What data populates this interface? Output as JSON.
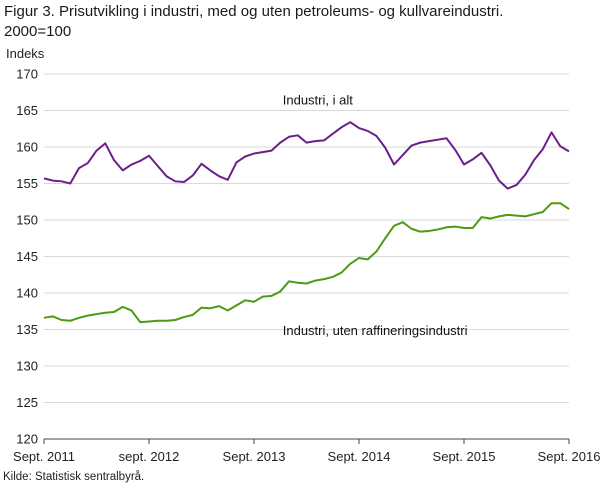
{
  "figure": {
    "title_line1": "Figur 3. Prisutvikling i industri, med og uten petroleums- og kullvareindustri.",
    "title_line2": "2000=100",
    "source": "Kilde: Statistisk sentralbyrå."
  },
  "colors": {
    "series_1": "#6a1f8a",
    "series_2": "#4e9a12",
    "grid": "#d9d9d9",
    "axis": "#444444"
  },
  "chart_data": {
    "type": "line",
    "ylabel": "Indeks",
    "xlabel": "",
    "ylim": [
      120,
      170
    ],
    "yticks": [
      120,
      125,
      130,
      135,
      140,
      145,
      150,
      155,
      160,
      165,
      170
    ],
    "xlim": [
      "2011-09",
      "2016-09"
    ],
    "xtick_positions": [
      "2011-09",
      "2012-09",
      "2013-09",
      "2014-09",
      "2015-09",
      "2016-09"
    ],
    "xtick_labels": [
      "Sept. 2011",
      "sept. 2012",
      "Sept. 2013",
      "Sept. 2014",
      "Sept. 2015",
      "Sept. 2016"
    ],
    "grid": "horizontal",
    "legend": "none",
    "x": [
      "2011-09",
      "2011-10",
      "2011-11",
      "2011-12",
      "2012-01",
      "2012-02",
      "2012-03",
      "2012-04",
      "2012-05",
      "2012-06",
      "2012-07",
      "2012-08",
      "2012-09",
      "2012-10",
      "2012-11",
      "2012-12",
      "2013-01",
      "2013-02",
      "2013-03",
      "2013-04",
      "2013-05",
      "2013-06",
      "2013-07",
      "2013-08",
      "2013-09",
      "2013-10",
      "2013-11",
      "2013-12",
      "2014-01",
      "2014-02",
      "2014-03",
      "2014-04",
      "2014-05",
      "2014-06",
      "2014-07",
      "2014-08",
      "2014-09",
      "2014-10",
      "2014-11",
      "2014-12",
      "2015-01",
      "2015-02",
      "2015-03",
      "2015-04",
      "2015-05",
      "2015-06",
      "2015-07",
      "2015-08",
      "2015-09",
      "2015-10",
      "2015-11",
      "2015-12",
      "2016-01",
      "2016-02",
      "2016-03",
      "2016-04",
      "2016-05",
      "2016-06",
      "2016-07",
      "2016-08",
      "2016-09"
    ],
    "series": [
      {
        "name": "Industri, i alt",
        "label": "Industri, i alt",
        "values": [
          155.7,
          155.4,
          155.3,
          155.0,
          157.1,
          157.8,
          159.5,
          160.5,
          158.2,
          156.8,
          157.6,
          158.1,
          158.8,
          157.4,
          156.0,
          155.3,
          155.2,
          156.1,
          157.7,
          156.8,
          156.0,
          155.5,
          157.9,
          158.7,
          159.1,
          159.3,
          159.5,
          160.6,
          161.4,
          161.6,
          160.6,
          160.8,
          160.9,
          161.8,
          162.7,
          163.4,
          162.6,
          162.2,
          161.5,
          159.9,
          157.6,
          158.9,
          160.2,
          160.6,
          160.8,
          161.0,
          161.2,
          159.6,
          157.6,
          158.3,
          159.2,
          157.5,
          155.4,
          154.3,
          154.8,
          156.2,
          158.2,
          159.7,
          162.0,
          160.1,
          159.4
        ]
      },
      {
        "name": "Industri, uten raffineringsindustri",
        "label": "Industri, uten raffineringsindustri",
        "values": [
          136.6,
          136.8,
          136.3,
          136.2,
          136.6,
          136.9,
          137.1,
          137.3,
          137.4,
          138.1,
          137.6,
          136.0,
          136.1,
          136.2,
          136.2,
          136.3,
          136.7,
          137.0,
          138.0,
          137.9,
          138.2,
          137.6,
          138.3,
          139.0,
          138.8,
          139.5,
          139.6,
          140.2,
          141.6,
          141.4,
          141.3,
          141.7,
          141.9,
          142.2,
          142.8,
          144.0,
          144.8,
          144.6,
          145.7,
          147.5,
          149.2,
          149.7,
          148.8,
          148.4,
          148.5,
          148.7,
          149.0,
          149.1,
          148.9,
          148.9,
          150.4,
          150.2,
          150.5,
          150.7,
          150.6,
          150.5,
          150.8,
          151.1,
          152.3,
          152.3,
          151.5
        ]
      }
    ]
  }
}
